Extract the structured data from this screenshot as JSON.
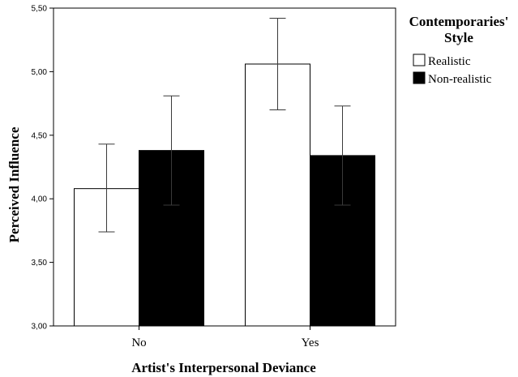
{
  "chart_data": {
    "type": "bar",
    "xlabel": "Artist's Interpersonal Deviance",
    "ylabel": "Perceived Influence",
    "categories": [
      "No",
      "Yes"
    ],
    "ylim": [
      3.0,
      5.5
    ],
    "yticks": [
      "3,00",
      "3,50",
      "4,00",
      "4,50",
      "5,00",
      "5,50"
    ],
    "grid": false,
    "legend": {
      "title_line1": "Contemporaries'",
      "title_line2": "Style",
      "position": "right"
    },
    "series": [
      {
        "name": "Realistic",
        "color": "#ffffff",
        "values": [
          4.08,
          5.06
        ],
        "err_low": [
          3.74,
          4.7
        ],
        "err_high": [
          4.43,
          5.42
        ]
      },
      {
        "name": "Non-realistic",
        "color": "#000000",
        "values": [
          4.38,
          4.34
        ],
        "err_low": [
          3.95,
          3.95
        ],
        "err_high": [
          4.81,
          4.73
        ]
      }
    ]
  }
}
